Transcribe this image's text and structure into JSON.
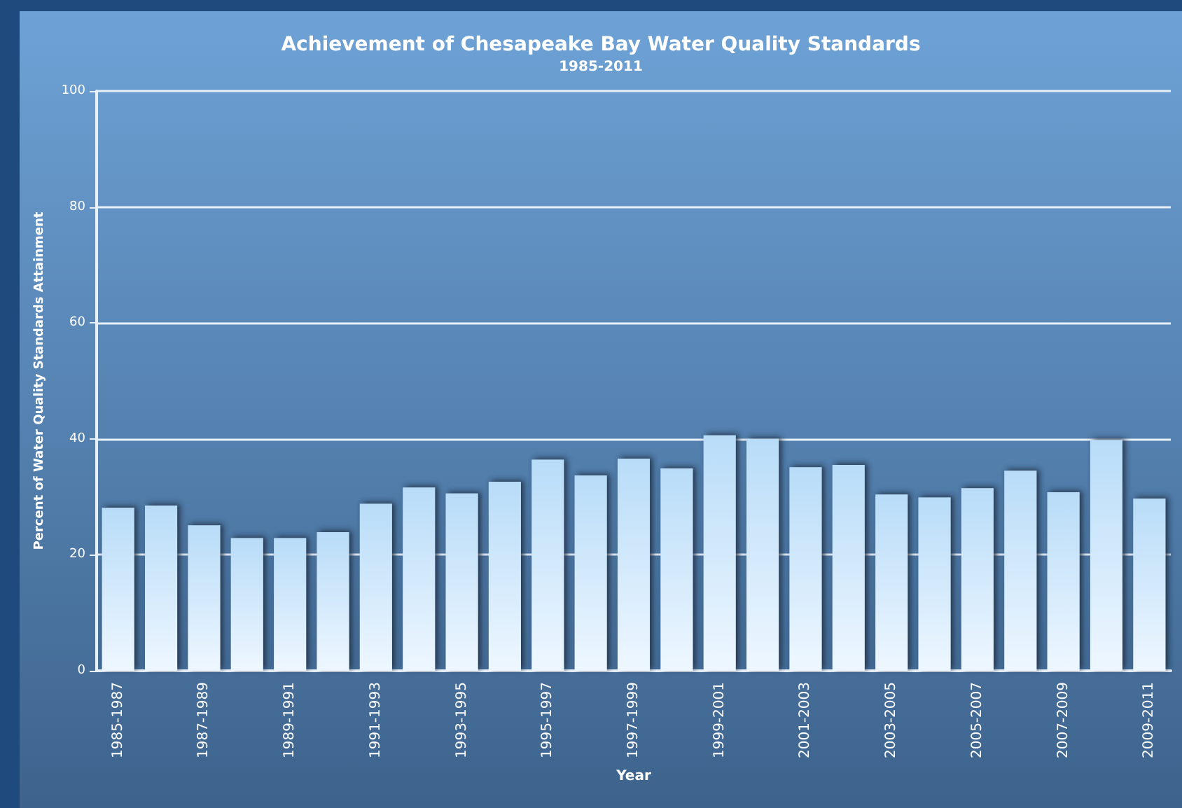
{
  "chart_data": {
    "type": "bar",
    "title": "Achievement of Chesapeake Bay Water Quality Standards",
    "subtitle": "1985-2011",
    "xlabel": "Year",
    "ylabel": "Percent of Water Quality Standards Attainment",
    "categories": [
      "1985-1987",
      null,
      "1987-1989",
      null,
      "1989-1991",
      null,
      "1991-1993",
      null,
      "1993-1995",
      null,
      "1995-1997",
      null,
      "1997-1999",
      null,
      "1999-2001",
      null,
      "2001-2003",
      null,
      "2003-2005",
      null,
      "2005-2007",
      null,
      "2007-2009",
      null,
      "2009-2011"
    ],
    "values": [
      28.1,
      28.5,
      25.1,
      22.9,
      22.9,
      23.9,
      28.8,
      31.6,
      30.6,
      32.6,
      36.4,
      33.7,
      36.6,
      34.9,
      40.6,
      40,
      35.1,
      35.5,
      30.4,
      29.9,
      31.5,
      34.5,
      30.8,
      39.8,
      29.7
    ],
    "color": "#b8dcf8",
    "ylim": [
      0,
      100
    ],
    "yticks": [
      0,
      20,
      40,
      60,
      80,
      100
    ],
    "grid": "y"
  }
}
